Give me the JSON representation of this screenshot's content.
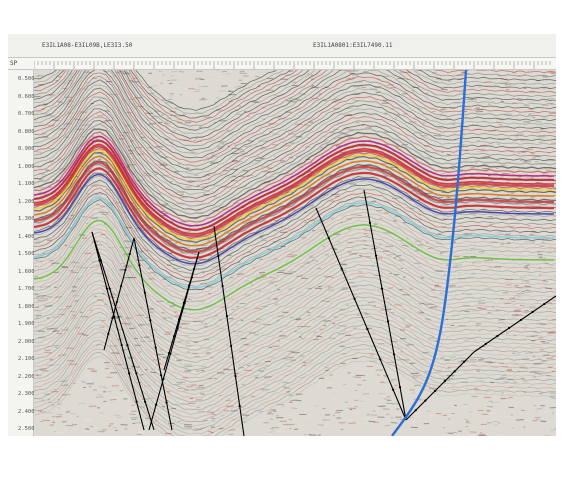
{
  "header": {
    "left_label": "E3IL1A08-E3IL09B,LE3I3.50",
    "center_label": "E3IL1A0801:E3IL7490.11"
  },
  "axis": {
    "sp_label": "SP",
    "y_ticks": [
      "0.500",
      "0.600",
      "0.700",
      "0.800",
      "0.900",
      "1.000",
      "1.100",
      "1.200",
      "1.300",
      "1.400",
      "1.500",
      "1.600",
      "1.700",
      "1.800",
      "1.900",
      "2.000",
      "2.100",
      "2.200",
      "2.300",
      "2.400",
      "2.500"
    ]
  },
  "colors": {
    "background_noise": "#dcdad2",
    "fault_lines": "#000000",
    "well_trace": "#2a6fd6",
    "horizons": [
      "#3a3aa8",
      "#e07a1c",
      "#f0d020",
      "#c0208a",
      "#d83040",
      "#7ad0e0",
      "#6cc040"
    ]
  }
}
